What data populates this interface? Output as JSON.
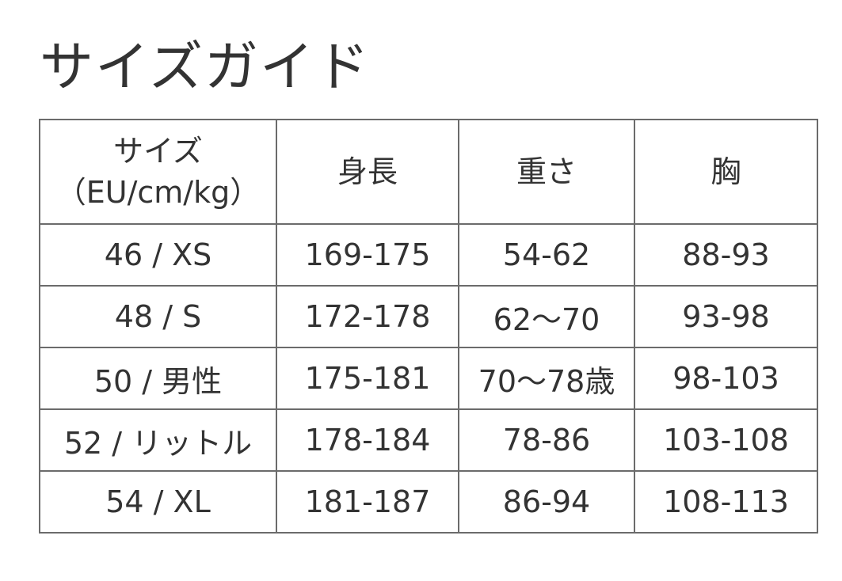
{
  "title": "サイズガイド",
  "table": {
    "headers": [
      {
        "line1": "サイズ",
        "line2": "（EU/cm/kg）"
      },
      {
        "line1": "身長"
      },
      {
        "line1": "重さ"
      },
      {
        "line1": "胸"
      }
    ],
    "rows": [
      [
        "46 / XS",
        "169-175",
        "54-62",
        "88-93"
      ],
      [
        "48 / S",
        "172-178",
        "62〜70",
        "93-98"
      ],
      [
        "50 / 男性",
        "175-181",
        "70〜78歳",
        "98-103"
      ],
      [
        "52 / リットル",
        "178-184",
        "78-86",
        "103-108"
      ],
      [
        "54 / XL",
        "181-187",
        "86-94",
        "108-113"
      ]
    ]
  }
}
